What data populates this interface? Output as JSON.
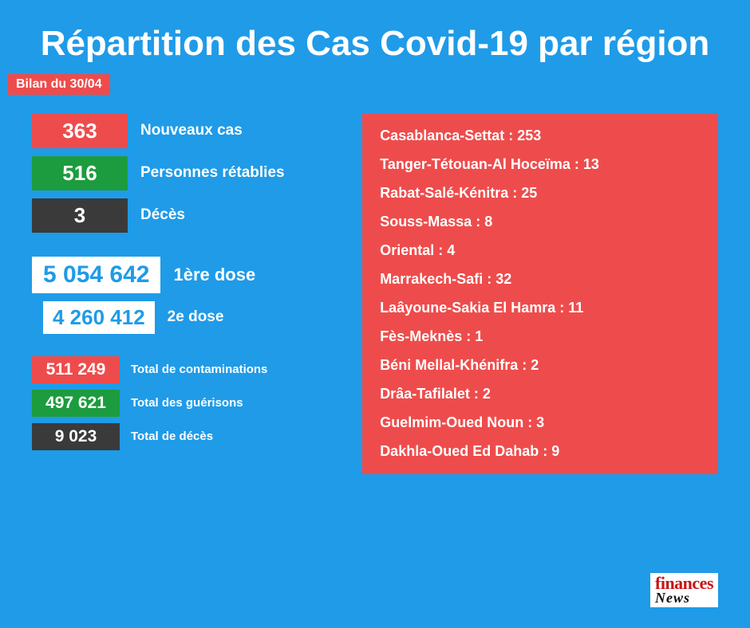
{
  "type": "infographic",
  "background_color": "#1f9be8",
  "text_color": "#ffffff",
  "title": "Répartition des Cas Covid-19 par région",
  "title_fontsize": 44,
  "date_badge": {
    "label": "Bilan du 30/04",
    "bg": "#ee4c4c"
  },
  "daily_stats": [
    {
      "value": "363",
      "label": "Nouveaux cas",
      "bg": "#ee4c4c"
    },
    {
      "value": "516",
      "label": "Personnes rétablies",
      "bg": "#1c9c3e"
    },
    {
      "value": "3",
      "label": "Décès",
      "bg": "#3a3a3a"
    }
  ],
  "doses": [
    {
      "value": "5 054 642",
      "label": "1ère dose",
      "value_color": "#1f9be8"
    },
    {
      "value": "4 260 412",
      "label": "2e dose",
      "value_color": "#1f9be8"
    }
  ],
  "totals": [
    {
      "value": "511 249",
      "label": "Total de contaminations",
      "bg": "#ee4c4c"
    },
    {
      "value": "497 621",
      "label": "Total des guérisons",
      "bg": "#1c9c3e"
    },
    {
      "value": "9 023",
      "label": "Total de décès",
      "bg": "#3a3a3a"
    }
  ],
  "region_panel_bg": "#ee4c4c",
  "regions": [
    {
      "name": "Casablanca-Settat",
      "value": 253
    },
    {
      "name": "Tanger-Tétouan-Al Hoceïma",
      "value": 13
    },
    {
      "name": "Rabat-Salé-Kénitra",
      "value": 25
    },
    {
      "name": "Souss-Massa",
      "value": 8
    },
    {
      "name": "Oriental",
      "value": 4
    },
    {
      "name": "Marrakech-Safi",
      "value": 32
    },
    {
      "name": "Laâyoune-Sakia El Hamra",
      "value": 11
    },
    {
      "name": "Fès-Meknès",
      "value": 1
    },
    {
      "name": "Béni Mellal-Khénifra",
      "value": 2
    },
    {
      "name": "Drâa-Tafilalet",
      "value": 2
    },
    {
      "name": "Guelmim-Oued Noun",
      "value": 3
    },
    {
      "name": "Dakhla-Oued Ed Dahab",
      "value": 9
    }
  ],
  "logo": {
    "top": "finances",
    "bottom": "News"
  }
}
